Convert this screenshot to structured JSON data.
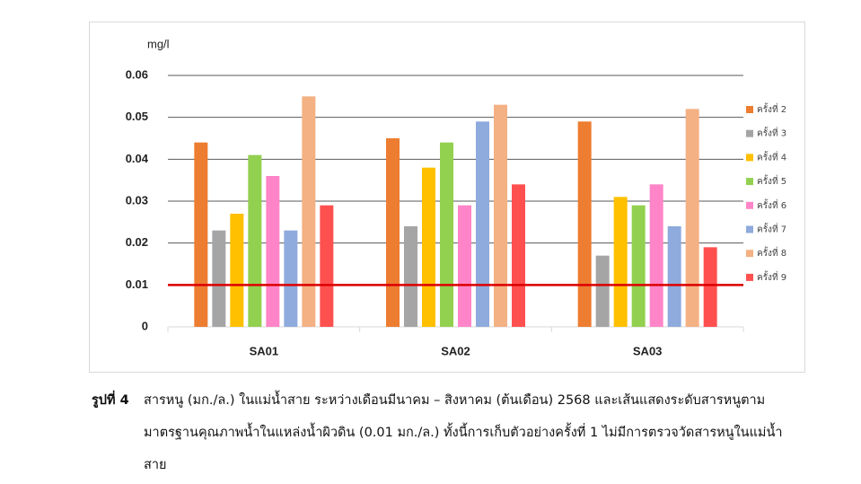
{
  "chart_data": {
    "type": "bar",
    "y_label": "mg/l",
    "categories": [
      "SA01",
      "SA02",
      "SA03"
    ],
    "series": [
      {
        "name": "ครั้งที่ 2",
        "color": "#ed7d31",
        "values": [
          0.044,
          0.045,
          0.049
        ]
      },
      {
        "name": "ครั้งที่ 3",
        "color": "#a5a5a5",
        "values": [
          0.023,
          0.024,
          0.017
        ]
      },
      {
        "name": "ครั้งที่ 4",
        "color": "#ffc000",
        "values": [
          0.027,
          0.038,
          0.031
        ]
      },
      {
        "name": "ครั้งที่ 5",
        "color": "#92d050",
        "values": [
          0.041,
          0.044,
          0.029
        ]
      },
      {
        "name": "ครั้งที่ 6",
        "color": "#ff85c8",
        "values": [
          0.036,
          0.029,
          0.034
        ]
      },
      {
        "name": "ครั้งที่ 7",
        "color": "#8faadc",
        "values": [
          0.023,
          0.049,
          0.024
        ]
      },
      {
        "name": "ครั้งที่ 8",
        "color": "#f4b183",
        "values": [
          0.055,
          0.053,
          0.052
        ]
      },
      {
        "name": "ครั้งที่ 9",
        "color": "#ff5050",
        "values": [
          0.029,
          0.034,
          0.019
        ]
      }
    ],
    "threshold": 0.01,
    "threshold_color": "#dd0000",
    "ylim": [
      0,
      0.06
    ],
    "yticks": [
      0,
      0.01,
      0.02,
      0.03,
      0.04,
      0.05,
      0.06
    ],
    "grid": true,
    "legend": "right"
  },
  "caption": {
    "label": "รูปที่ 4",
    "text": "สารหนู (มก./ล.) ในแม่น้ำสาย ระหว่างเดือนมีนาคม – สิงหาคม (ต้นเดือน) 2568 และเส้นแสดงระดับสารหนูตามมาตรฐานคุณภาพน้ำในแหล่งน้ำผิวดิน (0.01 มก./ล.) ทั้งนี้การเก็บตัวอย่างครั้งที่ 1 ไม่มีการตรวจวัดสารหนูในแม่น้ำสาย"
  }
}
